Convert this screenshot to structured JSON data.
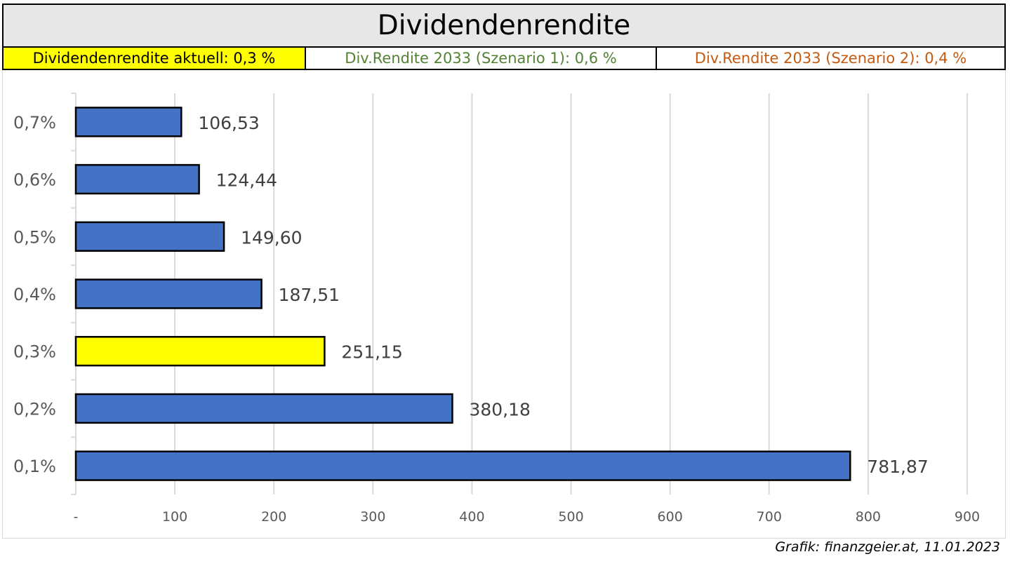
{
  "header": {
    "title": "Dividendenrendite",
    "current": "Dividendenrendite aktuell: 0,3 %",
    "scenario1": "Div.Rendite 2033 (Szenario 1): 0,6 %",
    "scenario2": "Div.Rendite 2033 (Szenario 2): 0,4 %"
  },
  "colors": {
    "bar": "#4472c4",
    "highlight": "#ffff00",
    "current_bg": "#ffff00",
    "scenario1_text": "#548235",
    "scenario2_text": "#c55a11",
    "grid": "#d9d9d9",
    "label_text": "#404040",
    "tick_text": "#595959"
  },
  "chart_data": {
    "type": "bar",
    "orientation": "horizontal",
    "categories": [
      "0,7%",
      "0,6%",
      "0,5%",
      "0,4%",
      "0,3%",
      "0,2%",
      "0,1%"
    ],
    "values": [
      106.53,
      124.44,
      149.6,
      187.51,
      251.15,
      380.18,
      781.87
    ],
    "value_labels": [
      "106,53",
      "124,44",
      "149,60",
      "187,51",
      "251,15",
      "380,18",
      "781,87"
    ],
    "highlight_category": "0,3%",
    "xlim": [
      0,
      900
    ],
    "x_ticks": [
      0,
      100,
      200,
      300,
      400,
      500,
      600,
      700,
      800,
      900
    ],
    "x_tick_labels": [
      "-",
      "100",
      "200",
      "300",
      "400",
      "500",
      "600",
      "700",
      "800",
      "900"
    ],
    "grid": true,
    "legend": false
  },
  "footer": {
    "credit": "Grafik: finanzgeier.at, 11.01.2023"
  }
}
